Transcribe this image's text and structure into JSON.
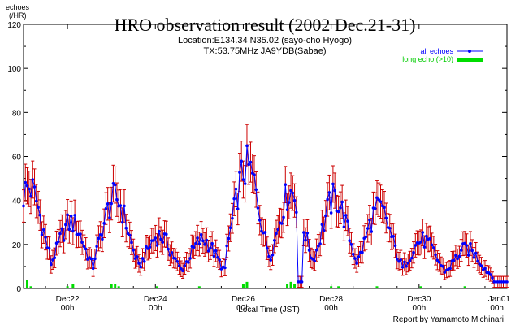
{
  "chart_data": {
    "type": "line",
    "title": "HRO observation result (2002 Dec.21-31)",
    "subtitle_lines": [
      "Location:E134.34 N35.02 (sayo-cho Hyogo)",
      "TX:53.75MHz JA9YDB(Sabae)"
    ],
    "ylabel_lines": [
      "echoes",
      "(/HR)"
    ],
    "xlabel": "Local Time (JST)",
    "credit": "Report by Yamamoto Michinari",
    "ylim": [
      0,
      120
    ],
    "yticks": [
      "0",
      "20",
      "40",
      "60",
      "80",
      "100",
      "120"
    ],
    "xlim_hours": [
      0,
      264
    ],
    "xticks": [
      {
        "hour": 24,
        "label": "Dec22",
        "sub": "00h"
      },
      {
        "hour": 72,
        "label": "Dec24",
        "sub": "00h"
      },
      {
        "hour": 120,
        "label": "Dec26",
        "sub": "00h"
      },
      {
        "hour": 168,
        "label": "Dec28",
        "sub": "00h"
      },
      {
        "hour": 216,
        "label": "Dec30",
        "sub": "00h"
      },
      {
        "hour": 264,
        "label": "Jan01",
        "sub": "00h"
      }
    ],
    "legend_position": "top-right",
    "series": [
      {
        "name": "all echoes",
        "color": "#0000ff",
        "errorbar_color": "#cc0000",
        "peaks": [
          {
            "hour": 3,
            "peak": 46
          },
          {
            "hour": 26,
            "peak": 30
          },
          {
            "hour": 50,
            "peak": 41
          },
          {
            "hour": 74,
            "peak": 24
          },
          {
            "hour": 98,
            "peak": 22
          },
          {
            "hour": 122,
            "peak": 55
          },
          {
            "hour": 146,
            "peak": 44
          },
          {
            "hour": 170,
            "peak": 41
          },
          {
            "hour": 194,
            "peak": 36
          },
          {
            "hour": 218,
            "peak": 22
          },
          {
            "hour": 242,
            "peak": 18
          }
        ],
        "baseline": 4
      },
      {
        "name": "long echo (>10)",
        "color": "#00dd00",
        "values_note": "small bars near zero",
        "bars": [
          {
            "hour": 2,
            "value": 4
          },
          {
            "hour": 4,
            "value": 1
          },
          {
            "hour": 24,
            "value": 1
          },
          {
            "hour": 27,
            "value": 2
          },
          {
            "hour": 48,
            "value": 2
          },
          {
            "hour": 50,
            "value": 2
          },
          {
            "hour": 52,
            "value": 1
          },
          {
            "hour": 73,
            "value": 1
          },
          {
            "hour": 96,
            "value": 1
          },
          {
            "hour": 120,
            "value": 2
          },
          {
            "hour": 122,
            "value": 3
          },
          {
            "hour": 144,
            "value": 2
          },
          {
            "hour": 146,
            "value": 3
          },
          {
            "hour": 148,
            "value": 2
          },
          {
            "hour": 168,
            "value": 1
          },
          {
            "hour": 172,
            "value": 1
          },
          {
            "hour": 193,
            "value": 1
          },
          {
            "hour": 217,
            "value": 1
          },
          {
            "hour": 241,
            "value": 1
          }
        ]
      }
    ]
  }
}
